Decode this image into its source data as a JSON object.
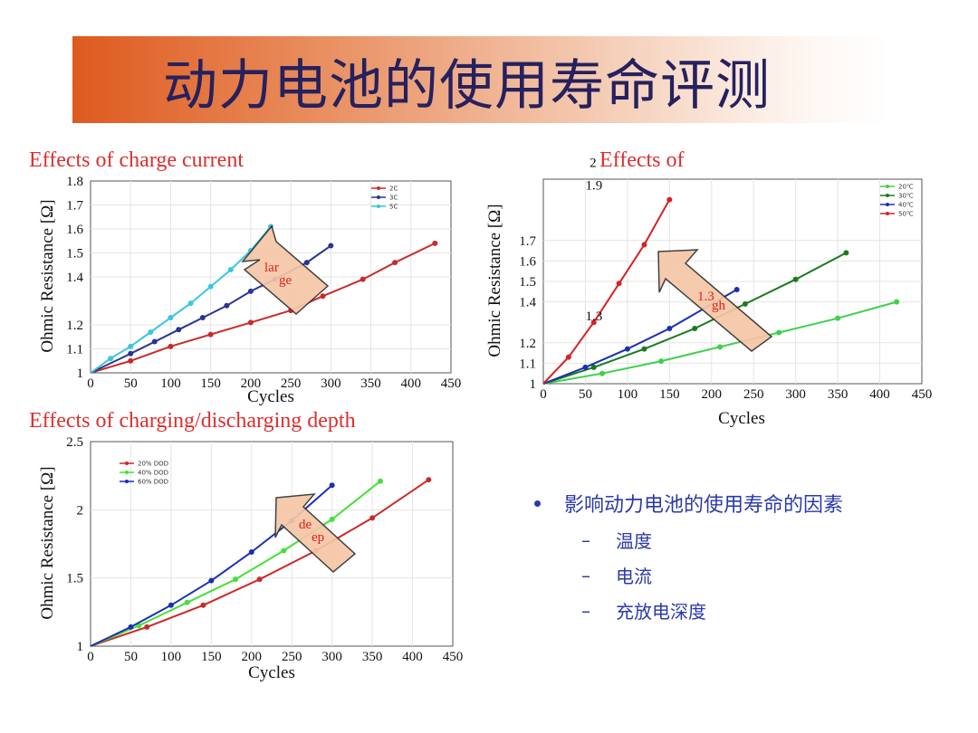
{
  "header": {
    "title": "动力电池的使用寿命评测"
  },
  "colors": {
    "banner_start": "#de5a1e",
    "section_title": "#dd2e2e",
    "text_blue": "#2b3aa8"
  },
  "factors": {
    "heading": "影响动力电池的使用寿命的因素",
    "items": [
      {
        "dash": "–",
        "label": "温度"
      },
      {
        "dash": "–",
        "label": "电流"
      },
      {
        "dash": "–",
        "label": "充放电深度"
      }
    ]
  },
  "chart_data": [
    {
      "type": "line",
      "title": "Effects of charge current",
      "xlabel": "Cycles",
      "ylabel": "Ohmic Resistance [Ω]",
      "xlim": [
        0,
        450
      ],
      "ylim": [
        1,
        1.8
      ],
      "x_ticks": [
        "0",
        "50",
        "100",
        "150",
        "200",
        "250",
        "300",
        "350",
        "400",
        "450"
      ],
      "y_ticks": [
        {
          "v": 1,
          "label": "1"
        },
        {
          "v": 1.1,
          "label": "1.1"
        },
        {
          "v": 1.2,
          "label": "1.2"
        },
        {
          "v": 1.4,
          "label": "1.4"
        },
        {
          "v": 1.5,
          "label": "1.5"
        },
        {
          "v": 1.6,
          "label": "1.6"
        },
        {
          "v": 1.7,
          "label": "1.7"
        },
        {
          "v": 1.8,
          "label": "1.8"
        }
      ],
      "legend_position": "top-right",
      "arrow_label": [
        "lar",
        "ge"
      ],
      "series": [
        {
          "name": "2C",
          "color": "#c92a2a",
          "x": [
            0,
            50,
            100,
            150,
            200,
            250,
            290,
            340,
            380,
            430
          ],
          "y": [
            1,
            1.05,
            1.11,
            1.16,
            1.21,
            1.26,
            1.32,
            1.39,
            1.46,
            1.54
          ]
        },
        {
          "name": "3C",
          "color": "#283593",
          "x": [
            0,
            50,
            80,
            110,
            140,
            170,
            200,
            230,
            270,
            300
          ],
          "y": [
            1,
            1.08,
            1.13,
            1.18,
            1.23,
            1.28,
            1.34,
            1.39,
            1.46,
            1.53
          ]
        },
        {
          "name": "5C",
          "color": "#38c7e0",
          "x": [
            0,
            25,
            50,
            75,
            100,
            125,
            150,
            175,
            200,
            225
          ],
          "y": [
            1,
            1.06,
            1.11,
            1.17,
            1.23,
            1.29,
            1.36,
            1.43,
            1.51,
            1.61
          ]
        }
      ]
    },
    {
      "type": "line",
      "title": "Effects of",
      "xlabel": "Cycles",
      "ylabel": "Ohmic Resistance [Ω]",
      "xlim": [
        0,
        450
      ],
      "ylim": [
        1,
        2
      ],
      "x_ticks": [
        "0",
        "50",
        "100",
        "150",
        "200",
        "250",
        "300",
        "350",
        "400",
        "450"
      ],
      "y_ticks": [
        {
          "v": 1,
          "label": "1"
        },
        {
          "v": 1.1,
          "label": "1.1"
        },
        {
          "v": 1.2,
          "label": "1.2"
        },
        {
          "v": 1.4,
          "label": "1.4"
        },
        {
          "v": 1.5,
          "label": "1.5"
        },
        {
          "v": 1.6,
          "label": "1.6"
        },
        {
          "v": 1.7,
          "label": "1.7"
        }
      ],
      "legend_position": "top-right",
      "arrow_label": [
        "1.3",
        "gh"
      ],
      "annotations": [
        {
          "text": "2",
          "x": 55,
          "y": 2.06
        },
        {
          "text": "1.9",
          "x": 50,
          "y": 1.95
        },
        {
          "text": "1.3",
          "x": 50,
          "y": 1.31
        }
      ],
      "series": [
        {
          "name": "20℃",
          "color": "#3ed14a",
          "x": [
            0,
            70,
            140,
            210,
            280,
            350,
            420
          ],
          "y": [
            1,
            1.05,
            1.11,
            1.18,
            1.25,
            1.32,
            1.4
          ]
        },
        {
          "name": "30℃",
          "color": "#1b7a1b",
          "x": [
            0,
            60,
            120,
            180,
            240,
            300,
            360
          ],
          "y": [
            1,
            1.08,
            1.17,
            1.27,
            1.39,
            1.51,
            1.64
          ]
        },
        {
          "name": "40℃",
          "color": "#1a2fb5",
          "x": [
            0,
            50,
            100,
            150,
            230
          ],
          "y": [
            1,
            1.08,
            1.17,
            1.27,
            1.46
          ]
        },
        {
          "name": "50℃",
          "color": "#d42424",
          "x": [
            0,
            30,
            60,
            90,
            120,
            150
          ],
          "y": [
            1,
            1.13,
            1.3,
            1.49,
            1.68,
            1.9
          ]
        }
      ]
    },
    {
      "type": "line",
      "title": "Effects of charging/discharging depth",
      "xlabel": "Cycles",
      "ylabel": "Ohmic Resistance [Ω]",
      "xlim": [
        0,
        450
      ],
      "ylim": [
        1,
        2.5
      ],
      "x_ticks": [
        "0",
        "50",
        "100",
        "150",
        "200",
        "250",
        "300",
        "350",
        "400",
        "450"
      ],
      "y_ticks": [
        {
          "v": 1,
          "label": "1"
        },
        {
          "v": 1.5,
          "label": "1.5"
        },
        {
          "v": 2,
          "label": "2"
        },
        {
          "v": 2.5,
          "label": "2.5"
        }
      ],
      "legend_position": "top-left",
      "arrow_label": [
        "de",
        "ep"
      ],
      "series": [
        {
          "name": "20% DOD",
          "color": "#c92a2a",
          "x": [
            0,
            70,
            140,
            210,
            280,
            350,
            420
          ],
          "y": [
            1,
            1.14,
            1.3,
            1.49,
            1.7,
            1.94,
            2.22
          ]
        },
        {
          "name": "40% DOD",
          "color": "#45e03a",
          "x": [
            0,
            60,
            120,
            180,
            240,
            300,
            360
          ],
          "y": [
            1,
            1.15,
            1.32,
            1.49,
            1.7,
            1.93,
            2.21
          ]
        },
        {
          "name": "60% DOD",
          "color": "#1a2fb5",
          "x": [
            0,
            50,
            100,
            150,
            200,
            250,
            300
          ],
          "y": [
            1,
            1.14,
            1.3,
            1.48,
            1.69,
            1.92,
            2.18
          ]
        }
      ]
    }
  ]
}
